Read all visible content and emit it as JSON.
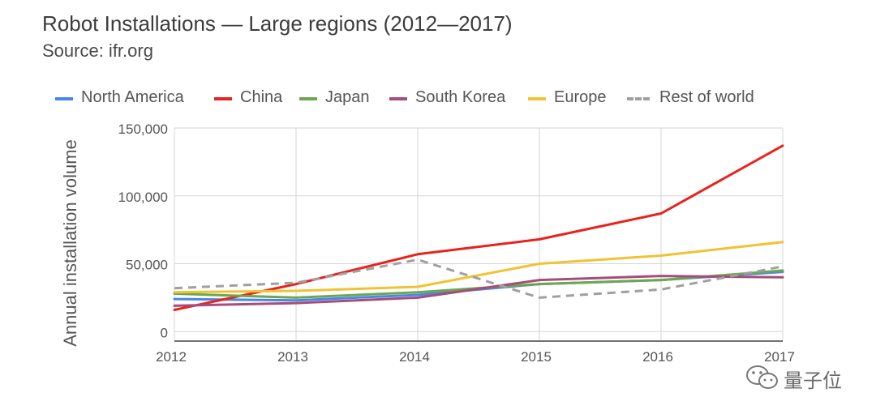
{
  "header": {
    "title": "Robot Installations — Large regions (2012—2017)",
    "subtitle": "Source: ifr.org"
  },
  "watermark": {
    "text": "量子位",
    "icon": "wechat-icon"
  },
  "chart_data": {
    "type": "line",
    "title": "Robot Installations — Large regions (2012—2017)",
    "subtitle": "Source: ifr.org",
    "xlabel": "",
    "ylabel": "Annual installation volume",
    "categories": [
      "2012",
      "2013",
      "2014",
      "2015",
      "2016",
      "2017"
    ],
    "ylim": [
      -7000,
      150000
    ],
    "yticks": [
      0,
      50000,
      100000,
      150000
    ],
    "ytick_labels": [
      "0",
      "50,000",
      "100,000",
      "150,000"
    ],
    "grid": true,
    "legend_position": "top",
    "series": [
      {
        "name": "North America",
        "color": "#4a86e8",
        "dash": false,
        "values": [
          24000,
          23000,
          27000,
          35000,
          38000,
          44000
        ]
      },
      {
        "name": "China",
        "color": "#e8231d",
        "dash": false,
        "values": [
          16000,
          35000,
          57000,
          68000,
          87000,
          137000
        ]
      },
      {
        "name": "Japan",
        "color": "#6aa84f",
        "dash": false,
        "values": [
          28000,
          25000,
          29000,
          35000,
          38000,
          45000
        ]
      },
      {
        "name": "South Korea",
        "color": "#a64d79",
        "dash": false,
        "values": [
          19000,
          21000,
          25000,
          38000,
          41000,
          40000
        ]
      },
      {
        "name": "Europe",
        "color": "#f1c232",
        "dash": false,
        "values": [
          29000,
          30000,
          33000,
          50000,
          56000,
          66000
        ]
      },
      {
        "name": "Rest of world",
        "color": "#a0a0a0",
        "dash": true,
        "values": [
          32000,
          36000,
          53000,
          25000,
          31000,
          48000
        ]
      }
    ]
  }
}
